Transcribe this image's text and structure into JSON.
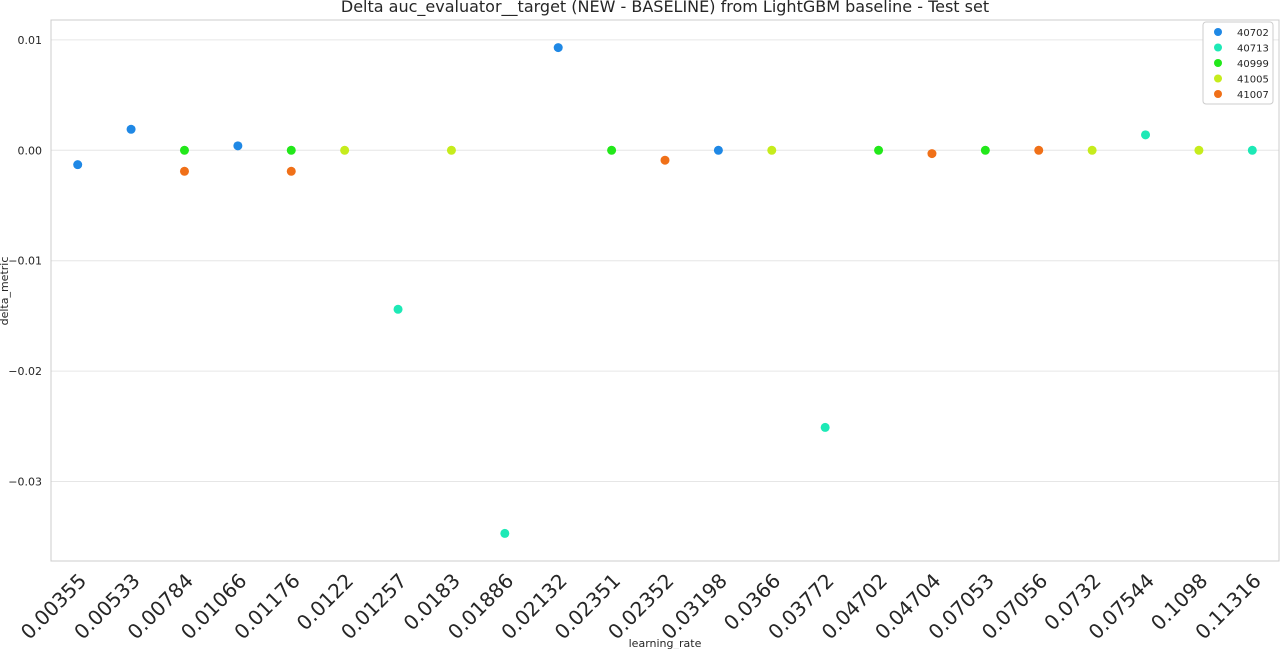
{
  "chart_data": {
    "type": "scatter",
    "title": "Delta auc_evaluator__target (NEW - BASELINE) from LightGBM baseline - Test set",
    "xlabel": "learning_rate",
    "ylabel": "delta_metric",
    "categories": [
      "0.00355",
      "0.00533",
      "0.00784",
      "0.01066",
      "0.01176",
      "0.0122",
      "0.01257",
      "0.0183",
      "0.01886",
      "0.02132",
      "0.02351",
      "0.02352",
      "0.03198",
      "0.0366",
      "0.03772",
      "0.04702",
      "0.04704",
      "0.07053",
      "0.07056",
      "0.0732",
      "0.07544",
      "0.1098",
      "0.11316"
    ],
    "ylim": [
      -0.0372,
      0.0118
    ],
    "yticks": [
      -0.03,
      -0.02,
      -0.01,
      0.0,
      0.01
    ],
    "ytick_labels": [
      "−0.03",
      "−0.02",
      "−0.01",
      "0.00",
      "0.01"
    ],
    "grid": true,
    "legend_position": "top-right",
    "series": [
      {
        "name": "40702",
        "color": "#1f88e5",
        "points": [
          [
            "0.00355",
            -0.0013
          ],
          [
            "0.00533",
            0.0019
          ],
          [
            "0.01066",
            0.0004
          ],
          [
            "0.02132",
            0.0093
          ],
          [
            "0.03198",
            0.0
          ]
        ]
      },
      {
        "name": "40713",
        "color": "#1de9b6",
        "points": [
          [
            "0.01257",
            -0.0144
          ],
          [
            "0.01886",
            -0.0347
          ],
          [
            "0.03772",
            -0.0251
          ],
          [
            "0.07544",
            0.0014
          ],
          [
            "0.11316",
            0.0
          ]
        ]
      },
      {
        "name": "40999",
        "color": "#22e81a",
        "points": [
          [
            "0.00784",
            0.0
          ],
          [
            "0.01176",
            0.0
          ],
          [
            "0.02351",
            0.0
          ],
          [
            "0.04702",
            0.0
          ],
          [
            "0.07053",
            0.0
          ]
        ]
      },
      {
        "name": "41005",
        "color": "#c6ec1c",
        "points": [
          [
            "0.0122",
            0.0
          ],
          [
            "0.0183",
            0.0
          ],
          [
            "0.0366",
            0.0
          ],
          [
            "0.0732",
            0.0
          ],
          [
            "0.1098",
            0.0
          ]
        ]
      },
      {
        "name": "41007",
        "color": "#f07018",
        "points": [
          [
            "0.00784",
            -0.0019
          ],
          [
            "0.01176",
            -0.0019
          ],
          [
            "0.02352",
            -0.0009
          ],
          [
            "0.04704",
            -0.0003
          ],
          [
            "0.07056",
            0.0
          ]
        ]
      }
    ]
  }
}
